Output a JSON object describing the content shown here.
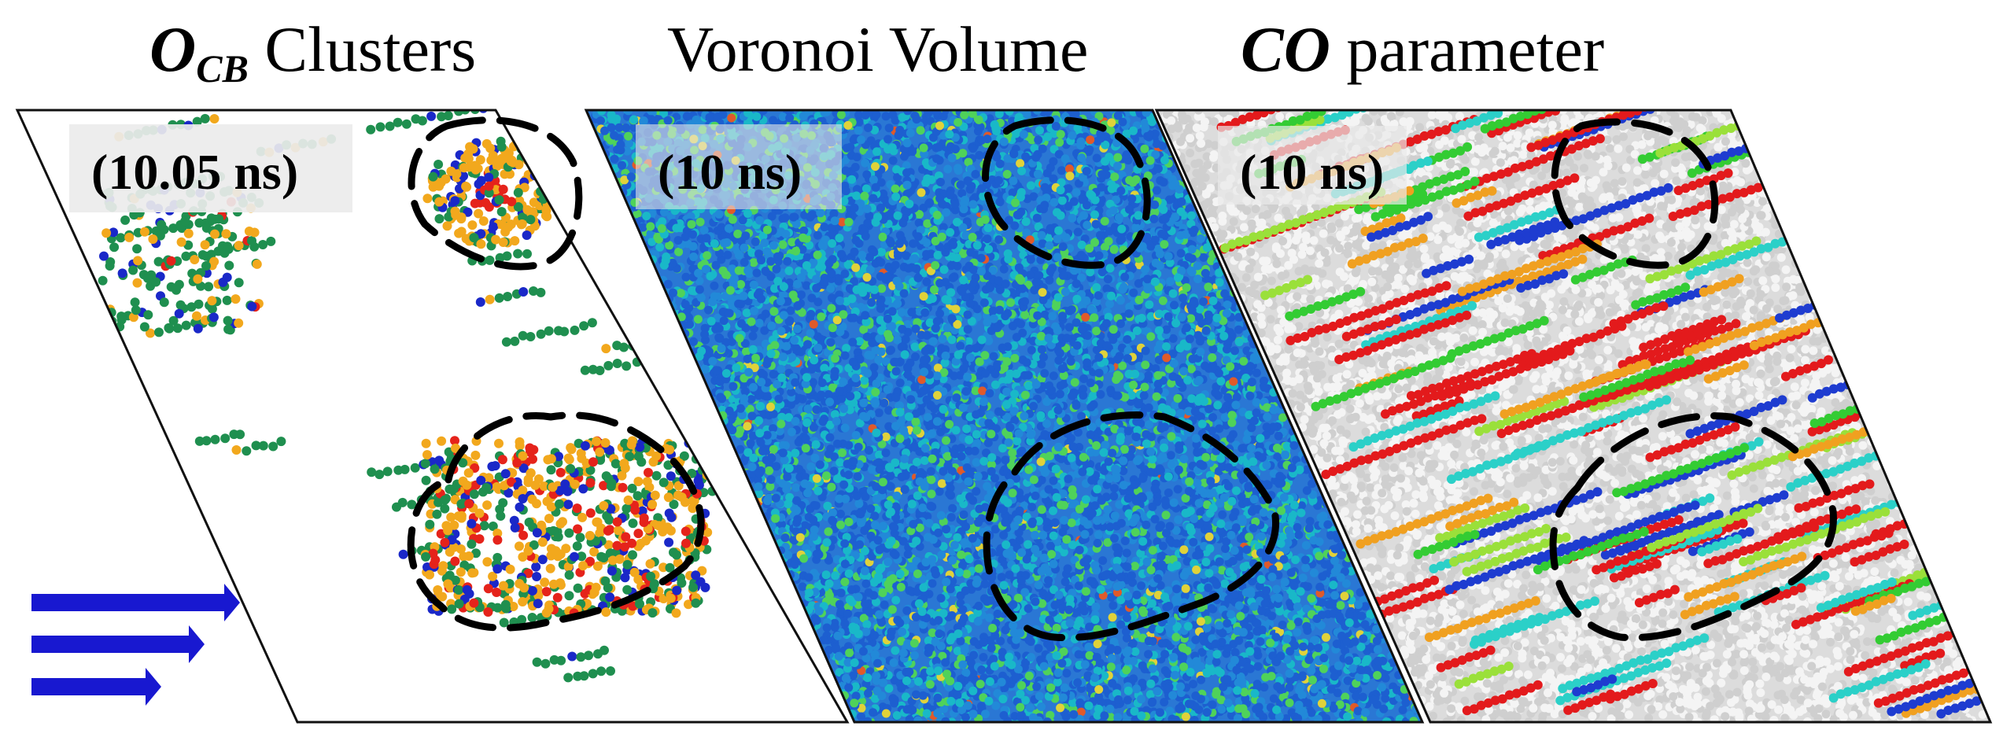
{
  "figure": {
    "panels": [
      {
        "id": "ocb",
        "title_main": "O",
        "title_sub": "CB",
        "title_rest": " Clusters",
        "time_label": "(10.05 ns)"
      },
      {
        "id": "voronoi",
        "title_main": "",
        "title_sub": "",
        "title_rest": "Voronoi Volume",
        "time_label": "(10 ns)"
      },
      {
        "id": "co",
        "title_main": "CO",
        "title_sub": "",
        "title_rest": " parameter",
        "time_label": "(10 ns)"
      }
    ],
    "colors": {
      "cluster_green": "#1f8f4f",
      "cluster_orange": "#f2a81d",
      "cluster_red": "#e5231b",
      "cluster_blue": "#1a28c8",
      "voronoi_blue": "#1d5fd0",
      "voronoi_cyan": "#19b8c8",
      "voronoi_green": "#4fd25a",
      "co_red": "#e31a1c",
      "co_green": "#33cc33",
      "co_white": "#e8e8e8",
      "shear_arrow": "#1818d0"
    },
    "annotations": {
      "dashed_regions": "black dashed outlines marking cluster regions",
      "shear_arrows": "shear-flow-arrows"
    }
  }
}
